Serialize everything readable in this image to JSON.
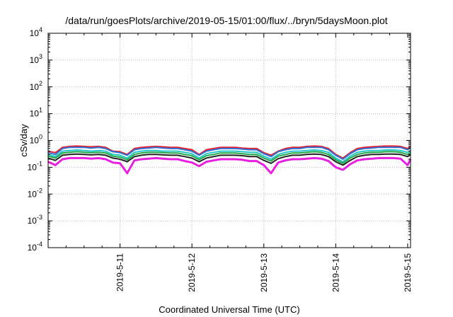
{
  "chart_data": {
    "type": "line",
    "title": "/data/run/goesPlots/archive/2019-05-15/01:00/flux/../bryn/5daysMoon.plot",
    "xlabel": "Coordinated Universal Time (UTC)",
    "ylabel": "cSv/day",
    "yscale": "log",
    "ylim": [
      0.0001,
      10000
    ],
    "xlim": [
      "2019-05-10T00:00",
      "2019-05-15T01:00"
    ],
    "grid": true,
    "x_ticks": [
      "2019-5-11",
      "2019-5-12",
      "2019-5-13",
      "2019-5-14",
      "2019-5-15"
    ],
    "y_ticks": [
      {
        "base": "10",
        "exp": "4"
      },
      {
        "base": "10",
        "exp": "3"
      },
      {
        "base": "10",
        "exp": "2"
      },
      {
        "base": "10",
        "exp": "1"
      },
      {
        "base": "10",
        "exp": "0"
      },
      {
        "base": "10",
        "exp": "-1"
      },
      {
        "base": "10",
        "exp": "-2"
      },
      {
        "base": "10",
        "exp": "-3"
      },
      {
        "base": "10",
        "exp": "-4"
      }
    ],
    "x_days": [
      0,
      0.1,
      0.2,
      0.3,
      0.4,
      0.5,
      0.6,
      0.7,
      0.8,
      0.9,
      1.0,
      1.1,
      1.2,
      1.3,
      1.4,
      1.5,
      1.6,
      1.7,
      1.8,
      1.9,
      2.0,
      2.1,
      2.2,
      2.3,
      2.4,
      2.5,
      2.6,
      2.7,
      2.8,
      2.9,
      3.0,
      3.1,
      3.2,
      3.3,
      3.4,
      3.5,
      3.6,
      3.7,
      3.8,
      3.9,
      4.0,
      4.1,
      4.2,
      4.3,
      4.4,
      4.5,
      4.6,
      4.7,
      4.8,
      4.9,
      5.0,
      5.04
    ],
    "series": [
      {
        "color": "#e8202a",
        "values": [
          0.4,
          0.35,
          0.55,
          0.6,
          0.62,
          0.6,
          0.58,
          0.6,
          0.55,
          0.4,
          0.38,
          0.3,
          0.5,
          0.55,
          0.58,
          0.6,
          0.58,
          0.55,
          0.55,
          0.5,
          0.45,
          0.3,
          0.45,
          0.5,
          0.55,
          0.55,
          0.55,
          0.52,
          0.5,
          0.5,
          0.35,
          0.28,
          0.4,
          0.5,
          0.55,
          0.55,
          0.6,
          0.62,
          0.6,
          0.5,
          0.3,
          0.22,
          0.35,
          0.5,
          0.55,
          0.58,
          0.6,
          0.62,
          0.62,
          0.6,
          0.5,
          0.6
        ]
      },
      {
        "color": "#2f6fd6",
        "values": [
          0.35,
          0.3,
          0.5,
          0.55,
          0.55,
          0.55,
          0.52,
          0.55,
          0.5,
          0.38,
          0.35,
          0.28,
          0.45,
          0.5,
          0.52,
          0.55,
          0.52,
          0.5,
          0.5,
          0.45,
          0.4,
          0.28,
          0.4,
          0.45,
          0.5,
          0.5,
          0.5,
          0.48,
          0.45,
          0.45,
          0.32,
          0.25,
          0.38,
          0.45,
          0.5,
          0.5,
          0.55,
          0.55,
          0.55,
          0.45,
          0.28,
          0.2,
          0.32,
          0.45,
          0.5,
          0.52,
          0.55,
          0.55,
          0.55,
          0.55,
          0.45,
          0.55
        ]
      },
      {
        "color": "#22c7c7",
        "values": [
          0.3,
          0.25,
          0.4,
          0.42,
          0.44,
          0.42,
          0.4,
          0.42,
          0.4,
          0.3,
          0.28,
          0.22,
          0.36,
          0.4,
          0.42,
          0.42,
          0.4,
          0.4,
          0.4,
          0.36,
          0.32,
          0.22,
          0.32,
          0.36,
          0.4,
          0.4,
          0.4,
          0.38,
          0.36,
          0.36,
          0.26,
          0.2,
          0.3,
          0.36,
          0.4,
          0.4,
          0.42,
          0.44,
          0.42,
          0.36,
          0.22,
          0.16,
          0.26,
          0.36,
          0.4,
          0.42,
          0.42,
          0.44,
          0.44,
          0.42,
          0.36,
          0.42
        ]
      },
      {
        "color": "#22a847",
        "values": [
          0.26,
          0.22,
          0.34,
          0.36,
          0.38,
          0.36,
          0.35,
          0.36,
          0.34,
          0.26,
          0.24,
          0.19,
          0.3,
          0.34,
          0.36,
          0.36,
          0.35,
          0.34,
          0.34,
          0.3,
          0.27,
          0.19,
          0.27,
          0.3,
          0.34,
          0.34,
          0.34,
          0.32,
          0.3,
          0.3,
          0.22,
          0.17,
          0.26,
          0.3,
          0.34,
          0.34,
          0.36,
          0.38,
          0.36,
          0.3,
          0.19,
          0.14,
          0.22,
          0.3,
          0.34,
          0.36,
          0.36,
          0.38,
          0.38,
          0.36,
          0.3,
          0.36
        ]
      },
      {
        "color": "#222222",
        "values": [
          0.22,
          0.18,
          0.28,
          0.3,
          0.31,
          0.3,
          0.29,
          0.3,
          0.28,
          0.22,
          0.2,
          0.16,
          0.25,
          0.28,
          0.3,
          0.3,
          0.29,
          0.28,
          0.28,
          0.25,
          0.22,
          0.16,
          0.22,
          0.25,
          0.28,
          0.28,
          0.28,
          0.27,
          0.25,
          0.25,
          0.18,
          0.14,
          0.21,
          0.25,
          0.28,
          0.28,
          0.3,
          0.31,
          0.3,
          0.25,
          0.16,
          0.12,
          0.18,
          0.25,
          0.28,
          0.3,
          0.3,
          0.31,
          0.31,
          0.3,
          0.25,
          0.3
        ]
      },
      {
        "color": "#e81ee0",
        "values": [
          0.16,
          0.12,
          0.2,
          0.22,
          0.22,
          0.22,
          0.21,
          0.22,
          0.2,
          0.15,
          0.14,
          0.06,
          0.18,
          0.2,
          0.21,
          0.22,
          0.21,
          0.2,
          0.2,
          0.17,
          0.15,
          0.11,
          0.16,
          0.18,
          0.2,
          0.2,
          0.2,
          0.19,
          0.17,
          0.17,
          0.12,
          0.06,
          0.15,
          0.18,
          0.2,
          0.2,
          0.21,
          0.22,
          0.21,
          0.17,
          0.1,
          0.08,
          0.13,
          0.18,
          0.2,
          0.21,
          0.22,
          0.22,
          0.22,
          0.21,
          0.12,
          0.2
        ]
      }
    ]
  }
}
